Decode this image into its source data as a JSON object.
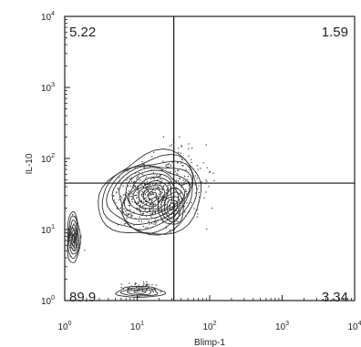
{
  "chart_data": {
    "type": "contour",
    "xlabel": "Blimp-1",
    "ylabel": "IL-10",
    "xscale": "log",
    "yscale": "log",
    "xlim": [
      1,
      10000
    ],
    "ylim": [
      1,
      10000
    ],
    "x_ticks": [
      {
        "base": "10",
        "exp": "0"
      },
      {
        "base": "10",
        "exp": "1"
      },
      {
        "base": "10",
        "exp": "2"
      },
      {
        "base": "10",
        "exp": "3"
      },
      {
        "base": "10",
        "exp": "4"
      }
    ],
    "y_ticks": [
      {
        "base": "10",
        "exp": "0"
      },
      {
        "base": "10",
        "exp": "1"
      },
      {
        "base": "10",
        "exp": "2"
      },
      {
        "base": "10",
        "exp": "3"
      },
      {
        "base": "10",
        "exp": "4"
      }
    ],
    "gates": {
      "x": 32,
      "y": 45
    },
    "quadrants": [
      {
        "position": "upper-left",
        "value": "5.22"
      },
      {
        "position": "upper-right",
        "value": "1.59"
      },
      {
        "position": "lower-left",
        "value": "89.9"
      },
      {
        "position": "lower-right",
        "value": "3.34"
      }
    ],
    "grid": false
  }
}
